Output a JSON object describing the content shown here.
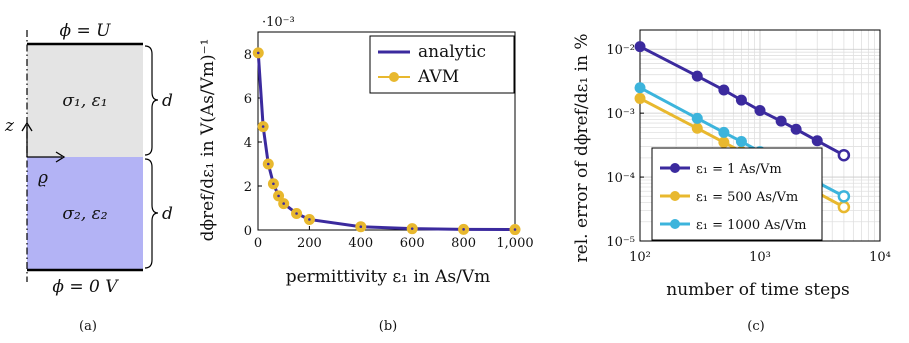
{
  "panel_a": {
    "caption": "(a)",
    "top_label": "ϕ = U",
    "bottom_label": "ϕ = 0 V",
    "upper_region": "σ₁, ε₁",
    "lower_region": "σ₂, ε₂",
    "upper_dim": "d",
    "lower_dim": "d",
    "z_axis": "z",
    "rho_axis": "ϱ",
    "colors": {
      "upper": "#e4e4e4",
      "lower": "#b3b3f5",
      "border": "#000000"
    }
  },
  "chart_data": [
    {
      "type": "line",
      "panel": "(b)",
      "xlabel": "permittivity ε₁ in As/Vm",
      "ylabel": "dϕref/dε₁ in V(As/Vm)⁻¹",
      "y_multiplier": "·10⁻³",
      "xlim": [
        0,
        1000
      ],
      "ylim": [
        0,
        9
      ],
      "x_ticks": [
        "0",
        "200",
        "400",
        "600",
        "800",
        "1,000"
      ],
      "y_ticks": [
        "0",
        "2",
        "4",
        "6",
        "8"
      ],
      "legend": "top-right",
      "grid": false,
      "x": [
        1,
        20,
        40,
        60,
        80,
        100,
        150,
        200,
        400,
        600,
        800,
        1000
      ],
      "series": [
        {
          "name": "analytic",
          "color": "#3b2a9e",
          "style": "line",
          "values": [
            8.05,
            4.7,
            3.0,
            2.1,
            1.55,
            1.2,
            0.75,
            0.48,
            0.15,
            0.06,
            0.03,
            0.02
          ]
        },
        {
          "name": "AVM",
          "color": "#e8b82e",
          "style": "markers",
          "values": [
            8.05,
            4.7,
            3.0,
            2.1,
            1.55,
            1.2,
            0.75,
            0.48,
            0.15,
            0.06,
            0.03,
            0.02
          ]
        }
      ]
    },
    {
      "type": "line",
      "panel": "(c)",
      "scale": "log-log",
      "xlabel": "number of time steps",
      "ylabel": "rel. error of dϕref/dε₁ in %",
      "xlim": [
        100,
        10000
      ],
      "ylim": [
        1e-05,
        0.02
      ],
      "x_ticks": [
        "10²",
        "10³",
        "10⁴"
      ],
      "y_ticks": [
        "10⁻⁵",
        "10⁻⁴",
        "10⁻³",
        "10⁻²"
      ],
      "legend": "bottom-left",
      "grid": true,
      "x": [
        100,
        300,
        500,
        700,
        1000,
        1500,
        2000,
        3000,
        5000
      ],
      "series": [
        {
          "name": "ε₁ = 1 As/Vm",
          "color": "#3b2a9e",
          "values": [
            0.011,
            0.0038,
            0.0023,
            0.0016,
            0.0011,
            0.00075,
            0.00056,
            0.00037,
            0.00022
          ]
        },
        {
          "name": "ε₁ = 500 As/Vm",
          "color": "#e8b82e",
          "values": [
            0.0017,
            0.00058,
            0.00035,
            0.00025,
            0.00017,
            0.000115,
            8.6e-05,
            5.7e-05,
            3.4e-05
          ]
        },
        {
          "name": "ε₁ = 1000 As/Vm",
          "color": "#3cb4dc",
          "values": [
            0.0025,
            0.00083,
            0.0005,
            0.00036,
            0.00025,
            0.000167,
            0.000125,
            8.3e-05,
            5e-05
          ]
        }
      ]
    }
  ]
}
